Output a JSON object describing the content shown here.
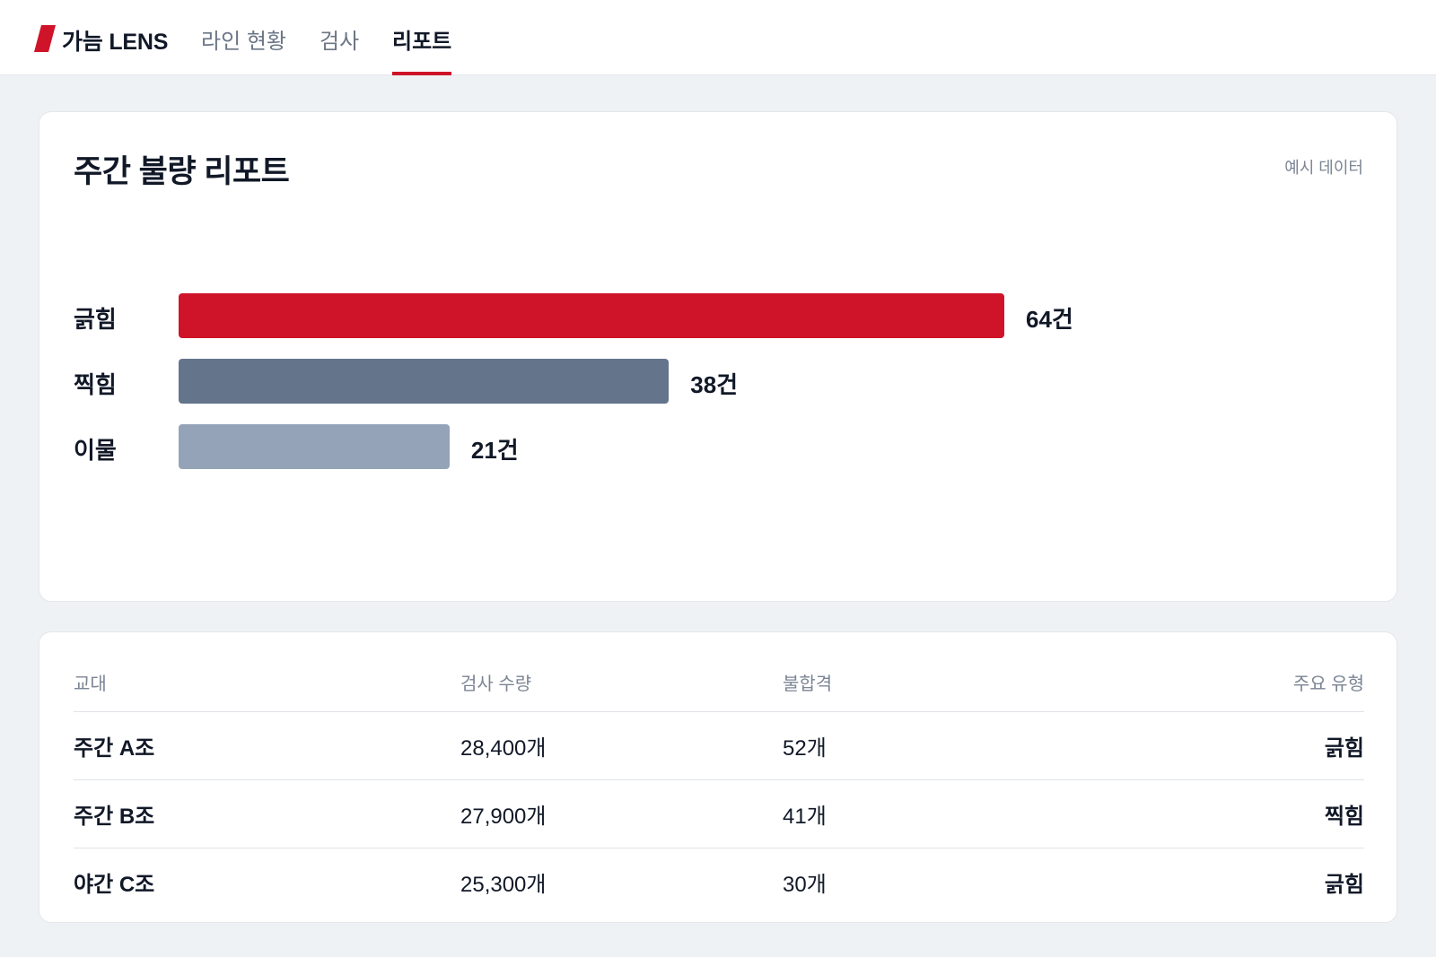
{
  "header": {
    "brand": "가늠 LENS",
    "tabs": [
      {
        "label": "라인 현황",
        "active": false
      },
      {
        "label": "검사",
        "active": false
      },
      {
        "label": "리포트",
        "active": true
      }
    ],
    "accent_color": "#cf1429"
  },
  "report": {
    "title": "주간 불량 리포트",
    "note": "예시 데이터"
  },
  "chart_data": {
    "type": "bar",
    "orientation": "horizontal",
    "categories": [
      "긁힘",
      "찍힘",
      "이물"
    ],
    "values": [
      64,
      38,
      21
    ],
    "value_labels": [
      "64건",
      "38건",
      "21건"
    ],
    "colors": [
      "#cf1429",
      "#64748b",
      "#94a3b8"
    ],
    "title": "",
    "xlabel": "",
    "ylabel": "",
    "grid": false
  },
  "table": {
    "columns": [
      "교대",
      "검사 수량",
      "불합격",
      "주요 유형"
    ],
    "rows": [
      {
        "shift": "주간 A조",
        "qty": "28,400개",
        "fail": "52개",
        "type": "긁힘"
      },
      {
        "shift": "주간 B조",
        "qty": "27,900개",
        "fail": "41개",
        "type": "찍힘"
      },
      {
        "shift": "야간 C조",
        "qty": "25,300개",
        "fail": "30개",
        "type": "긁힘"
      }
    ]
  }
}
